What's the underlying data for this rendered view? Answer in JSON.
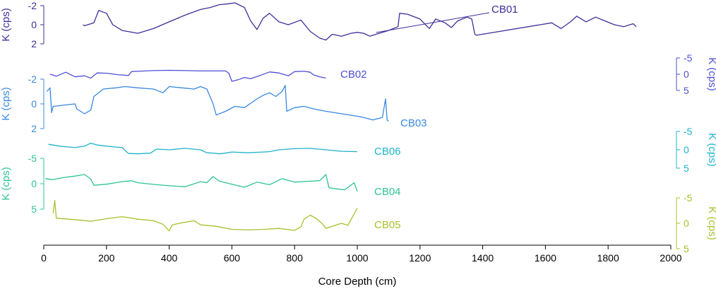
{
  "chart_data": {
    "type": "line",
    "title": "",
    "xlabel": "Core Depth (cm)",
    "xlim": [
      0,
      2000
    ],
    "x_ticks": [
      0,
      200,
      400,
      600,
      800,
      1000,
      1200,
      1400,
      1600,
      1800,
      2000
    ],
    "series": [
      {
        "name": "CB01",
        "color": "#3d2f9a",
        "ylabel": "K (cps)",
        "axis_side": "left",
        "y_ticks": [
          -2,
          0,
          2
        ],
        "points": [
          [
            125,
            0
          ],
          [
            130,
            0.1
          ],
          [
            160,
            -0.2
          ],
          [
            175,
            -1.5
          ],
          [
            200,
            -1.2
          ],
          [
            220,
            0
          ],
          [
            250,
            0.6
          ],
          [
            300,
            0.9
          ],
          [
            350,
            0.4
          ],
          [
            400,
            -0.3
          ],
          [
            450,
            -1
          ],
          [
            500,
            -1.6
          ],
          [
            530,
            -1.8
          ],
          [
            560,
            -2.1
          ],
          [
            590,
            -2.2
          ],
          [
            610,
            -2.3
          ],
          [
            640,
            -1.8
          ],
          [
            660,
            -0.4
          ],
          [
            680,
            0.5
          ],
          [
            700,
            -0.7
          ],
          [
            720,
            -1.2
          ],
          [
            750,
            -0.3
          ],
          [
            780,
            0
          ],
          [
            820,
            -0.5
          ],
          [
            850,
            0.7
          ],
          [
            880,
            1.4
          ],
          [
            900,
            1.6
          ],
          [
            920,
            1
          ],
          [
            950,
            1.2
          ],
          [
            980,
            0.9
          ],
          [
            1000,
            0.8
          ],
          [
            1020,
            0.9
          ],
          [
            1040,
            1.2
          ],
          [
            1060,
            1
          ],
          [
            1100,
            0.6
          ],
          [
            1130,
            0.2
          ],
          [
            1135,
            -1.2
          ],
          [
            1160,
            -1.1
          ],
          [
            1200,
            -0.6
          ],
          [
            1230,
            0.4
          ],
          [
            1250,
            -0.6
          ],
          [
            1280,
            -0.2
          ],
          [
            1300,
            0.3
          ],
          [
            1320,
            -0.4
          ],
          [
            1350,
            -0.8
          ],
          [
            1365,
            -0.6
          ],
          [
            1375,
            1
          ],
          [
            1380,
            1.1
          ],
          [
            1620,
            -0.2
          ],
          [
            1650,
            0.4
          ],
          [
            1680,
            -0.3
          ],
          [
            1700,
            -0.9
          ],
          [
            1730,
            -0.3
          ],
          [
            1760,
            -0.8
          ],
          [
            1790,
            -0.4
          ],
          [
            1820,
            0
          ],
          [
            1850,
            0.2
          ],
          [
            1880,
            -0.1
          ],
          [
            1890,
            0.2
          ]
        ]
      },
      {
        "name": "CB02",
        "color": "#4f4fd6",
        "ylabel": "K (cps)",
        "axis_side": "right",
        "y_ticks": [
          -5,
          0,
          5
        ],
        "points": [
          [
            20,
            0
          ],
          [
            40,
            0.6
          ],
          [
            70,
            -0.6
          ],
          [
            100,
            0.8
          ],
          [
            130,
            0.5
          ],
          [
            150,
            1.2
          ],
          [
            170,
            -0.4
          ],
          [
            200,
            -0.3
          ],
          [
            240,
            0.2
          ],
          [
            270,
            0.4
          ],
          [
            280,
            -0.8
          ],
          [
            300,
            -0.9
          ],
          [
            350,
            -1.1
          ],
          [
            400,
            -1.2
          ],
          [
            450,
            -1.1
          ],
          [
            500,
            -1
          ],
          [
            550,
            -1
          ],
          [
            580,
            -1
          ],
          [
            590,
            -0.3
          ],
          [
            600,
            2.2
          ],
          [
            620,
            1.7
          ],
          [
            640,
            1
          ],
          [
            660,
            1.4
          ],
          [
            690,
            0.4
          ],
          [
            720,
            -0.7
          ],
          [
            750,
            -0.4
          ],
          [
            780,
            0.5
          ],
          [
            800,
            -0.8
          ],
          [
            830,
            -0.9
          ],
          [
            850,
            -0.6
          ],
          [
            860,
            0.2
          ],
          [
            880,
            0.8
          ],
          [
            900,
            1.2
          ]
        ]
      },
      {
        "name": "CB03",
        "color": "#3888e0",
        "ylabel": "K (cps)",
        "axis_side": "left",
        "y_ticks": [
          -2,
          0,
          2
        ],
        "points": [
          [
            10,
            -1
          ],
          [
            20,
            -1.3
          ],
          [
            25,
            0.7
          ],
          [
            30,
            0.2
          ],
          [
            100,
            0
          ],
          [
            105,
            0.4
          ],
          [
            130,
            0.8
          ],
          [
            150,
            0.5
          ],
          [
            160,
            -0.6
          ],
          [
            190,
            -1.2
          ],
          [
            230,
            -1.3
          ],
          [
            260,
            -1.4
          ],
          [
            300,
            -1.3
          ],
          [
            350,
            -1.2
          ],
          [
            380,
            -0.9
          ],
          [
            400,
            -1.4
          ],
          [
            440,
            -1.3
          ],
          [
            480,
            -1.2
          ],
          [
            500,
            -1.4
          ],
          [
            520,
            -1.2
          ],
          [
            540,
            0
          ],
          [
            550,
            0.9
          ],
          [
            580,
            0.6
          ],
          [
            610,
            0.2
          ],
          [
            640,
            0.3
          ],
          [
            680,
            -0.4
          ],
          [
            700,
            -0.7
          ],
          [
            720,
            -0.9
          ],
          [
            740,
            -0.6
          ],
          [
            760,
            -1
          ],
          [
            770,
            -1.5
          ],
          [
            775,
            0.6
          ],
          [
            800,
            0.3
          ],
          [
            830,
            0.2
          ],
          [
            860,
            0.4
          ],
          [
            900,
            0.6
          ],
          [
            950,
            0.8
          ],
          [
            1000,
            1
          ],
          [
            1020,
            1.1
          ],
          [
            1050,
            1.3
          ],
          [
            1080,
            1.1
          ],
          [
            1090,
            -0.4
          ],
          [
            1095,
            1.3
          ],
          [
            1100,
            1.4
          ]
        ]
      },
      {
        "name": "CB06",
        "color": "#1fb3cc",
        "ylabel": "K (cps)",
        "axis_side": "right",
        "y_ticks": [
          -5,
          0,
          5
        ],
        "points": [
          [
            15,
            -1.5
          ],
          [
            50,
            -1
          ],
          [
            100,
            -0.6
          ],
          [
            130,
            -1
          ],
          [
            150,
            -1.8
          ],
          [
            170,
            -1.3
          ],
          [
            200,
            -1
          ],
          [
            250,
            -0.6
          ],
          [
            270,
            1
          ],
          [
            300,
            1.1
          ],
          [
            340,
            0.9
          ],
          [
            360,
            -0.2
          ],
          [
            400,
            0
          ],
          [
            450,
            -0.4
          ],
          [
            500,
            0
          ],
          [
            520,
            0.8
          ],
          [
            540,
            0.9
          ],
          [
            560,
            1.1
          ],
          [
            580,
            0.9
          ],
          [
            600,
            0.6
          ],
          [
            650,
            0.8
          ],
          [
            700,
            0.6
          ],
          [
            720,
            0.5
          ],
          [
            750,
            0
          ],
          [
            800,
            -0.3
          ],
          [
            850,
            -0.4
          ],
          [
            900,
            0
          ],
          [
            950,
            0.4
          ],
          [
            1000,
            0.5
          ]
        ]
      },
      {
        "name": "CB04",
        "color": "#2fc490",
        "ylabel": "K (cps)",
        "axis_side": "left",
        "y_ticks": [
          -5,
          0,
          5
        ],
        "points": [
          [
            5,
            -1
          ],
          [
            30,
            -0.8
          ],
          [
            60,
            -1.2
          ],
          [
            100,
            -1.5
          ],
          [
            130,
            -1.8
          ],
          [
            150,
            -0.9
          ],
          [
            160,
            0.3
          ],
          [
            200,
            0.1
          ],
          [
            250,
            -0.4
          ],
          [
            280,
            -0.6
          ],
          [
            300,
            -0.2
          ],
          [
            330,
            0
          ],
          [
            360,
            0.2
          ],
          [
            400,
            0.4
          ],
          [
            450,
            0.6
          ],
          [
            480,
            0
          ],
          [
            500,
            -0.4
          ],
          [
            520,
            -0.2
          ],
          [
            540,
            -1.4
          ],
          [
            560,
            -0.5
          ],
          [
            600,
            0.1
          ],
          [
            640,
            0.7
          ],
          [
            680,
            -0.3
          ],
          [
            720,
            0.2
          ],
          [
            760,
            -1
          ],
          [
            800,
            -0.3
          ],
          [
            850,
            -0.5
          ],
          [
            880,
            -0.6
          ],
          [
            900,
            -1.8
          ],
          [
            910,
            0.8
          ],
          [
            930,
            1
          ],
          [
            960,
            1.2
          ],
          [
            990,
            -0.2
          ],
          [
            1000,
            1.5
          ]
        ]
      },
      {
        "name": "CB05",
        "color": "#a6c12e",
        "ylabel": "K (cps)",
        "axis_side": "right",
        "y_ticks": [
          -5,
          0,
          5
        ],
        "points": [
          [
            30,
            -2
          ],
          [
            35,
            -4.5
          ],
          [
            40,
            -1
          ],
          [
            80,
            -0.8
          ],
          [
            120,
            -0.6
          ],
          [
            150,
            -0.4
          ],
          [
            200,
            -0.9
          ],
          [
            250,
            -1.3
          ],
          [
            300,
            -0.8
          ],
          [
            350,
            -0.5
          ],
          [
            380,
            0.2
          ],
          [
            400,
            1.5
          ],
          [
            410,
            0.3
          ],
          [
            440,
            -0.1
          ],
          [
            480,
            -0.5
          ],
          [
            500,
            0.3
          ],
          [
            550,
            0.6
          ],
          [
            600,
            1.2
          ],
          [
            650,
            1.3
          ],
          [
            700,
            1.2
          ],
          [
            750,
            1
          ],
          [
            800,
            1.4
          ],
          [
            820,
            0.7
          ],
          [
            830,
            -0.8
          ],
          [
            850,
            -1.6
          ],
          [
            870,
            -0.9
          ],
          [
            890,
            0.2
          ],
          [
            900,
            1
          ],
          [
            920,
            0.6
          ],
          [
            950,
            0
          ],
          [
            970,
            0.4
          ],
          [
            1000,
            -3
          ]
        ]
      }
    ]
  }
}
